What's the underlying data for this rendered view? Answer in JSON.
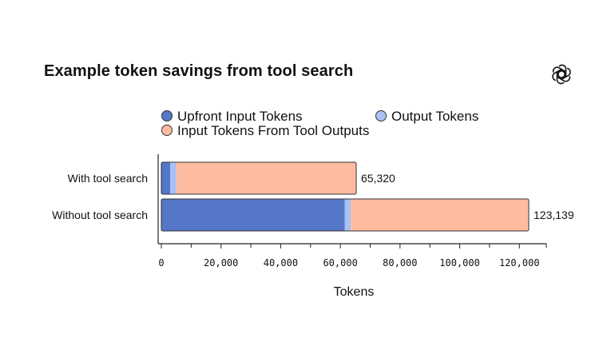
{
  "chart_data": {
    "type": "bar",
    "orientation": "horizontal",
    "stacked": true,
    "title": "Example token savings from tool search",
    "xlabel": "Tokens",
    "ylabel": "",
    "xlim": [
      0,
      130000
    ],
    "x_ticks": [
      0,
      20000,
      40000,
      60000,
      80000,
      100000,
      120000
    ],
    "x_tick_labels": [
      "0",
      "20,000",
      "40,000",
      "60,000",
      "80,000",
      "100,000",
      "120,000"
    ],
    "legend_position": "top",
    "grid": false,
    "categories": [
      "With tool search",
      "Without tool search"
    ],
    "series": [
      {
        "name": "Upfront Input Tokens",
        "color": "#5577c8",
        "values": [
          3000,
          61500
        ]
      },
      {
        "name": "Output Tokens",
        "color": "#a9c1f6",
        "values": [
          2000,
          2000
        ]
      },
      {
        "name": "Input Tokens From Tool Outputs",
        "color": "#ffbba0",
        "values": [
          60320,
          59639
        ]
      }
    ],
    "totals": [
      65320,
      123139
    ],
    "total_labels": [
      "65,320",
      "123,139"
    ]
  },
  "icons": {
    "logo": "openai-logo-icon"
  }
}
